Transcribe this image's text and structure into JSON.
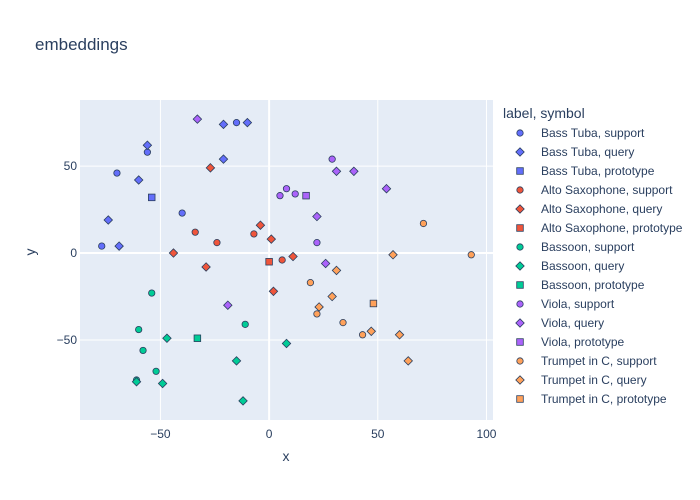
{
  "chart_data": {
    "type": "scatter",
    "title": "embeddings",
    "xlabel": "x",
    "ylabel": "y",
    "xlim": [
      -87,
      103
    ],
    "ylim": [
      -96,
      88
    ],
    "xticks": [
      -50,
      0,
      50,
      100
    ],
    "yticks": [
      -50,
      0,
      50
    ],
    "grid": true,
    "legend_title": "label, symbol",
    "legend_position": "right",
    "colors": {
      "plot_bg": "#e5ecf6",
      "grid": "#ffffff"
    },
    "series": [
      {
        "name": "Bass Tuba, support",
        "color": "#636efa",
        "symbol": "circle",
        "points": [
          [
            -15,
            75
          ],
          [
            -70,
            46
          ],
          [
            -56,
            58
          ],
          [
            -40,
            23
          ],
          [
            -77,
            4
          ]
        ]
      },
      {
        "name": "Bass Tuba, query",
        "color": "#636efa",
        "symbol": "diamond",
        "points": [
          [
            -21,
            74
          ],
          [
            -10,
            75
          ],
          [
            -56,
            62
          ],
          [
            -60,
            42
          ],
          [
            -74,
            19
          ],
          [
            -69,
            4
          ],
          [
            -21,
            54
          ]
        ]
      },
      {
        "name": "Bass Tuba, prototype",
        "color": "#636efa",
        "symbol": "square",
        "points": [
          [
            -54,
            32
          ]
        ]
      },
      {
        "name": "Alto Saxophone, support",
        "color": "#ef553b",
        "symbol": "circle",
        "points": [
          [
            -34,
            12
          ],
          [
            -24,
            6
          ],
          [
            -7,
            11
          ],
          [
            6,
            -4
          ]
        ]
      },
      {
        "name": "Alto Saxophone, query",
        "color": "#ef553b",
        "symbol": "diamond",
        "points": [
          [
            -27,
            49
          ],
          [
            -4,
            16
          ],
          [
            1,
            8
          ],
          [
            -44,
            0
          ],
          [
            -29,
            -8
          ],
          [
            11,
            -2
          ],
          [
            2,
            -22
          ]
        ]
      },
      {
        "name": "Alto Saxophone, prototype",
        "color": "#ef553b",
        "symbol": "square",
        "points": [
          [
            0,
            -5
          ]
        ]
      },
      {
        "name": "Bassoon, support",
        "color": "#00cc96",
        "symbol": "circle",
        "points": [
          [
            -54,
            -23
          ],
          [
            -60,
            -44
          ],
          [
            -58,
            -56
          ],
          [
            -52,
            -68
          ],
          [
            -61,
            -73
          ],
          [
            -11,
            -41
          ]
        ]
      },
      {
        "name": "Bassoon, query",
        "color": "#00cc96",
        "symbol": "diamond",
        "points": [
          [
            -47,
            -49
          ],
          [
            -61,
            -74
          ],
          [
            -49,
            -75
          ],
          [
            -15,
            -62
          ],
          [
            -12,
            -85
          ],
          [
            8,
            -52
          ]
        ]
      },
      {
        "name": "Bassoon, prototype",
        "color": "#00cc96",
        "symbol": "square",
        "points": [
          [
            -33,
            -49
          ]
        ]
      },
      {
        "name": "Viola, support",
        "color": "#ab63fa",
        "symbol": "circle",
        "points": [
          [
            29,
            54
          ],
          [
            8,
            37
          ],
          [
            5,
            33
          ],
          [
            12,
            34
          ],
          [
            22,
            6
          ]
        ]
      },
      {
        "name": "Viola, query",
        "color": "#ab63fa",
        "symbol": "diamond",
        "points": [
          [
            -33,
            77
          ],
          [
            31,
            47
          ],
          [
            39,
            47
          ],
          [
            54,
            37
          ],
          [
            22,
            21
          ],
          [
            26,
            -6
          ],
          [
            -19,
            -30
          ]
        ]
      },
      {
        "name": "Viola, prototype",
        "color": "#ab63fa",
        "symbol": "square",
        "points": [
          [
            17,
            33
          ]
        ]
      },
      {
        "name": "Trumpet in C, support",
        "color": "#ffa15a",
        "symbol": "circle",
        "points": [
          [
            71,
            17
          ],
          [
            93,
            -1
          ],
          [
            19,
            -17
          ],
          [
            22,
            -35
          ],
          [
            34,
            -40
          ],
          [
            43,
            -47
          ]
        ]
      },
      {
        "name": "Trumpet in C, query",
        "color": "#ffa15a",
        "symbol": "diamond",
        "points": [
          [
            57,
            -1
          ],
          [
            31,
            -10
          ],
          [
            23,
            -31
          ],
          [
            29,
            -25
          ],
          [
            47,
            -45
          ],
          [
            60,
            -47
          ],
          [
            64,
            -62
          ]
        ]
      },
      {
        "name": "Trumpet in C, prototype",
        "color": "#ffa15a",
        "symbol": "square",
        "points": [
          [
            48,
            -29
          ]
        ]
      }
    ]
  }
}
